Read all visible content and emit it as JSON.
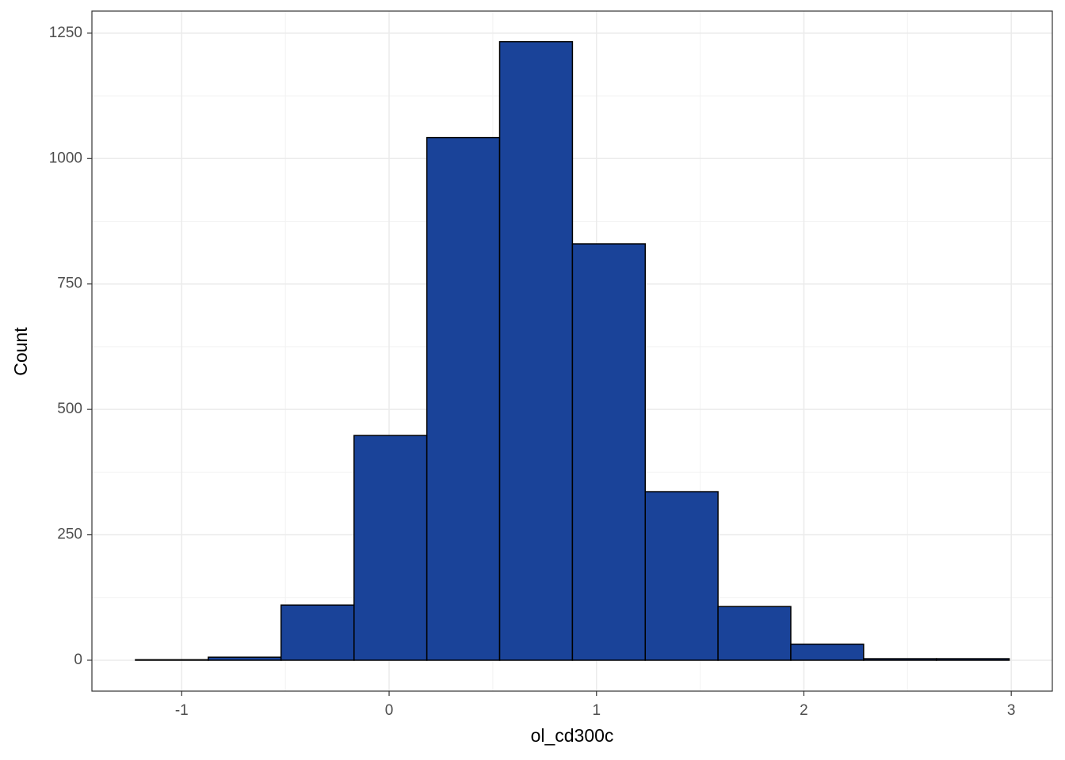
{
  "chart_data": {
    "type": "histogram",
    "x_label": "ol_cd300c",
    "y_label": "Count",
    "bins": [
      -1.223,
      -0.872,
      -0.521,
      -0.169,
      0.182,
      0.533,
      0.884,
      1.235,
      1.586,
      1.937,
      2.288,
      2.639,
      2.99
    ],
    "values": [
      1,
      6,
      110,
      448,
      1042,
      1233,
      830,
      336,
      107,
      32,
      3,
      3
    ],
    "color": "#1a4399",
    "xlim": [
      -1.433,
      3.198
    ],
    "ylim": [
      -61.6,
      1294
    ],
    "xticks": [
      -1,
      0,
      1,
      2,
      3
    ],
    "yticks": [
      0,
      250,
      500,
      750,
      1000,
      1250
    ],
    "grid": true,
    "minor_grid": true
  }
}
